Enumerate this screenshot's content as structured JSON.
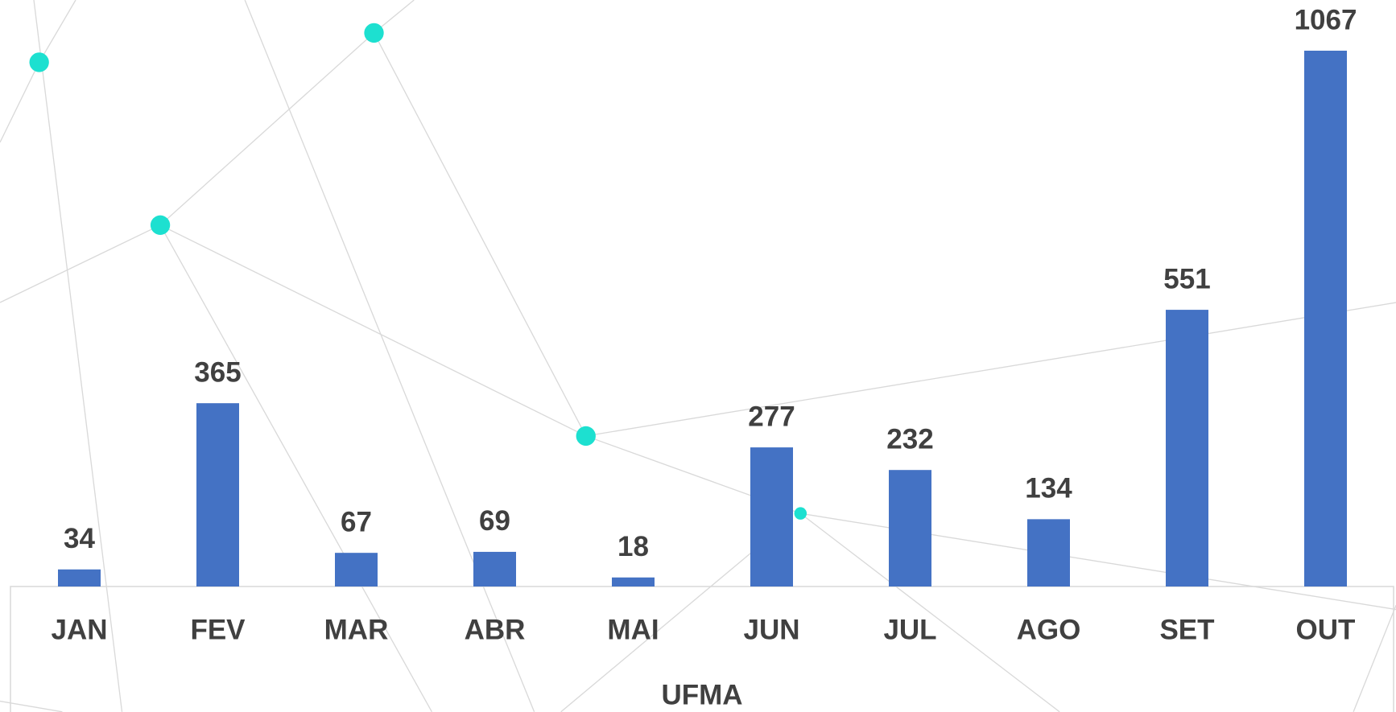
{
  "chart_data": {
    "type": "bar",
    "x_label": "UFMA",
    "categories": [
      "JAN",
      "FEV",
      "MAR",
      "ABR",
      "MAI",
      "JUN",
      "JUL",
      "AGO",
      "SET",
      "OUT"
    ],
    "values": [
      34,
      365,
      67,
      69,
      18,
      277,
      232,
      134,
      551,
      1067
    ],
    "color": "#4472c4"
  }
}
